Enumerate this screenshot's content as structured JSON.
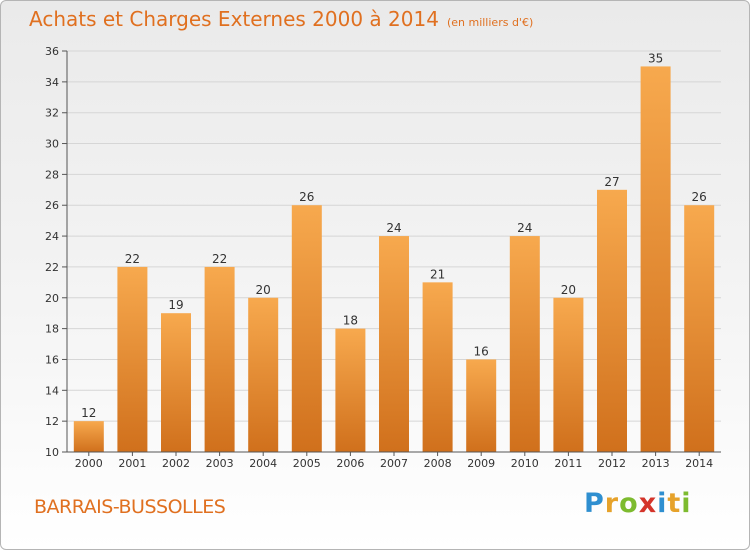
{
  "title": "Achats et Charges Externes 2000 à 2014",
  "subtitle": "(en milliers d'€)",
  "commune": "BARRAIS-BUSSOLLES",
  "brand": {
    "letters": [
      "P",
      "r",
      "o",
      "x",
      "i",
      "t",
      "i"
    ],
    "colors": [
      "#2f8fd0",
      "#e6a22a",
      "#7dbb2f",
      "#d4342a",
      "#2f8fd0",
      "#e6a22a",
      "#7dbb2f"
    ]
  },
  "colors": {
    "bar_top": "#f7a94e",
    "bar_bottom": "#d0701c",
    "accent": "#e07020"
  },
  "chart_data": {
    "type": "bar",
    "categories": [
      "2000",
      "2001",
      "2002",
      "2003",
      "2004",
      "2005",
      "2006",
      "2007",
      "2008",
      "2009",
      "2010",
      "2011",
      "2012",
      "2013",
      "2014"
    ],
    "values": [
      12,
      22,
      19,
      22,
      20,
      26,
      18,
      24,
      21,
      16,
      24,
      20,
      27,
      35,
      26
    ],
    "ylim": [
      10,
      36
    ],
    "yticks": [
      10,
      12,
      14,
      16,
      18,
      20,
      22,
      24,
      26,
      28,
      30,
      32,
      34,
      36
    ],
    "grid": true,
    "title": "Achats et Charges Externes 2000 à 2014",
    "subtitle": "(en milliers d'€)"
  }
}
